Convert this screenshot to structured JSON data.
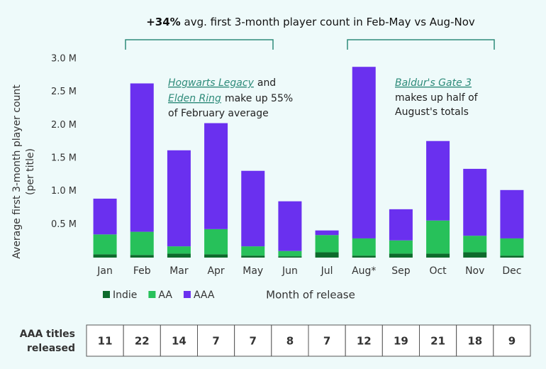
{
  "chart_data": {
    "type": "stacked-bar",
    "title_highlight": "+34%",
    "title": "avg. first 3-month player count in Feb-May vs Aug-Nov",
    "y_label": [
      "Average first 3-month player count",
      "(per title)"
    ],
    "x_label": "Month of release",
    "categories": [
      "Jan",
      "Feb",
      "Mar",
      "Apr",
      "May",
      "Jun",
      "Jul",
      "Aug*",
      "Sep",
      "Oct",
      "Nov",
      "Dec"
    ],
    "series": [
      {
        "name": "Indie",
        "color": "#0d6b2c",
        "values": [
          0.05,
          0.04,
          0.06,
          0.05,
          0.03,
          0.02,
          0.08,
          0.03,
          0.06,
          0.06,
          0.08,
          0.03
        ]
      },
      {
        "name": "AA",
        "color": "#27c15a",
        "values": [
          0.3,
          0.35,
          0.11,
          0.38,
          0.14,
          0.08,
          0.26,
          0.26,
          0.2,
          0.5,
          0.25,
          0.26
        ]
      },
      {
        "name": "AAA",
        "color": "#6a30ef",
        "values": [
          0.54,
          2.24,
          1.45,
          1.6,
          1.14,
          0.75,
          0.07,
          2.59,
          0.47,
          1.2,
          1.01,
          0.73
        ]
      }
    ],
    "ylim": [
      0,
      3.0
    ],
    "yticks": [
      {
        "value": 0.5,
        "label": "0.5 M"
      },
      {
        "value": 1.0,
        "label": "1.0 M"
      },
      {
        "value": 1.5,
        "label": "1.5 M"
      },
      {
        "value": 2.0,
        "label": "2.0 M"
      },
      {
        "value": 2.5,
        "label": "2.5 M"
      },
      {
        "value": 3.0,
        "label": "3.0 M"
      }
    ],
    "annotations": [
      {
        "lines": [
          [
            {
              "text": "Hogwarts Legacy",
              "style": "link"
            },
            {
              "text": "and"
            }
          ],
          [
            {
              "text": "Elden Ring",
              "style": "link"
            },
            {
              "text": "make up 55%"
            }
          ],
          [
            {
              "text": "of February average"
            }
          ]
        ]
      },
      {
        "lines": [
          [
            {
              "text": "Baldur's Gate 3",
              "style": "link"
            }
          ],
          [
            {
              "text": "makes up half of"
            }
          ],
          [
            {
              "text": "August's totals"
            }
          ]
        ]
      }
    ],
    "table": {
      "label": [
        "AAA titles",
        "released"
      ],
      "values": [
        "11",
        "22",
        "14",
        "7",
        "7",
        "8",
        "7",
        "12",
        "19",
        "21",
        "18",
        "9"
      ]
    }
  }
}
